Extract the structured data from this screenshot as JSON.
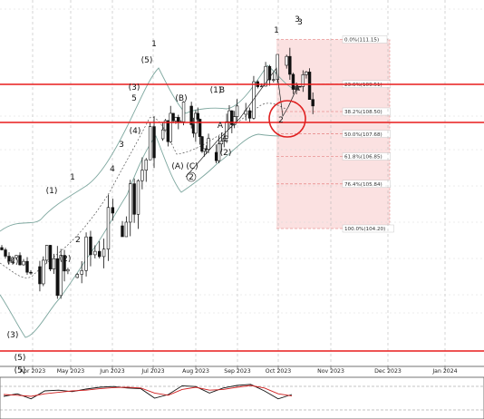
{
  "chart_data": [
    {
      "type": "candlestick",
      "title": "",
      "x_tick_labels": [
        "Apr 2023",
        "May 2023",
        "Jun 2023",
        "Jul 2023",
        "Aug 2023",
        "Sep 2023",
        "Oct 2023",
        "Nov 2023",
        "Dec 2023",
        "Jan 2024"
      ],
      "grid": true,
      "support_resistance_levels": [
        109.5,
        108.1,
        99.7
      ],
      "fibonacci_retracement": {
        "high": 111.15,
        "low": 104.2,
        "levels": [
          {
            "label": "0.0%(111.15)",
            "value": 111.15
          },
          {
            "label": "23.6%(109.51)",
            "value": 109.51
          },
          {
            "label": "38.2%(108.50)",
            "value": 108.5
          },
          {
            "label": "50.0%(107.68)",
            "value": 107.68
          },
          {
            "label": "61.8%(106.85)",
            "value": 106.85
          },
          {
            "label": "76.4%(105.84)",
            "value": 105.84
          },
          {
            "label": "100.0%(104.20)",
            "value": 104.2
          }
        ]
      },
      "wave_labels": [
        {
          "text": "(3)",
          "price": 100.2
        },
        {
          "text": "(5)",
          "price": 98.9
        },
        {
          "text": "(4)",
          "price": 102.9
        },
        {
          "text": "(1)",
          "price": 105.5
        },
        {
          "text": "(2)",
          "price": 103.0
        },
        {
          "text": "1",
          "price": 106.0
        },
        {
          "text": "2",
          "price": 103.7
        },
        {
          "text": "3",
          "price": 107.2
        },
        {
          "text": "4",
          "price": 106.3
        },
        {
          "text": "(4)",
          "price": 107.7
        },
        {
          "text": "5",
          "price": 108.9
        },
        {
          "text": "(3)",
          "price": 109.3
        },
        {
          "text": "1",
          "price": 110.9
        },
        {
          "text": "(5)",
          "price": 110.3
        },
        {
          "text": "(B)",
          "price": 108.9
        },
        {
          "text": "(A)",
          "price": 106.4
        },
        {
          "text": "(C)",
          "price": 106.4
        },
        {
          "text": "2",
          "price": 106.0
        },
        {
          "text": "(1)",
          "price": 109.2
        },
        {
          "text": "B",
          "price": 109.2
        },
        {
          "text": "A",
          "price": 107.9
        },
        {
          "text": "C",
          "price": 107.4
        },
        {
          "text": "(2)",
          "price": 106.9
        },
        {
          "text": "1",
          "price": 111.4
        },
        {
          "text": "2",
          "price": 108.1
        },
        {
          "text": "3",
          "price": 111.8
        },
        {
          "text": "3",
          "price": 111.7
        }
      ],
      "price_series": [
        {
          "month": "Mar 2023",
          "open": 103.5,
          "high": 103.9,
          "low": 102.5,
          "close": 102.8
        },
        {
          "month": "Apr 2023",
          "open": 102.8,
          "high": 103.6,
          "low": 99.4,
          "close": 102.4
        },
        {
          "month": "May 2023",
          "open": 102.4,
          "high": 105.9,
          "low": 101.7,
          "close": 104.3
        },
        {
          "month": "Jun 2023",
          "open": 104.3,
          "high": 108.4,
          "low": 103.9,
          "close": 107.5
        },
        {
          "month": "Jul 2023",
          "open": 107.5,
          "high": 109.8,
          "low": 107.1,
          "close": 108.7
        },
        {
          "month": "Jul 2023 late",
          "open": 108.7,
          "high": 109.2,
          "low": 106.4,
          "close": 107.0
        },
        {
          "month": "Aug 2023",
          "open": 107.0,
          "high": 109.3,
          "low": 106.6,
          "close": 108.4
        },
        {
          "month": "Sep 2023",
          "open": 108.4,
          "high": 110.6,
          "low": 107.9,
          "close": 110.2
        },
        {
          "month": "Oct 2023",
          "open": 110.2,
          "high": 111.15,
          "low": 108.2,
          "close": 109.2
        }
      ]
    },
    {
      "type": "line",
      "title": "",
      "series": [
        {
          "values": [
            55,
            62,
            48,
            70,
            72,
            68,
            75,
            80,
            82,
            78,
            76,
            50,
            60,
            84,
            82,
            64,
            78,
            85,
            88,
            70,
            48,
            60
          ]
        },
        {
          "values": [
            60,
            58,
            55,
            62,
            66,
            70,
            72,
            76,
            79,
            80,
            78,
            64,
            58,
            74,
            80,
            72,
            74,
            80,
            85,
            78,
            62,
            56
          ]
        }
      ]
    }
  ]
}
